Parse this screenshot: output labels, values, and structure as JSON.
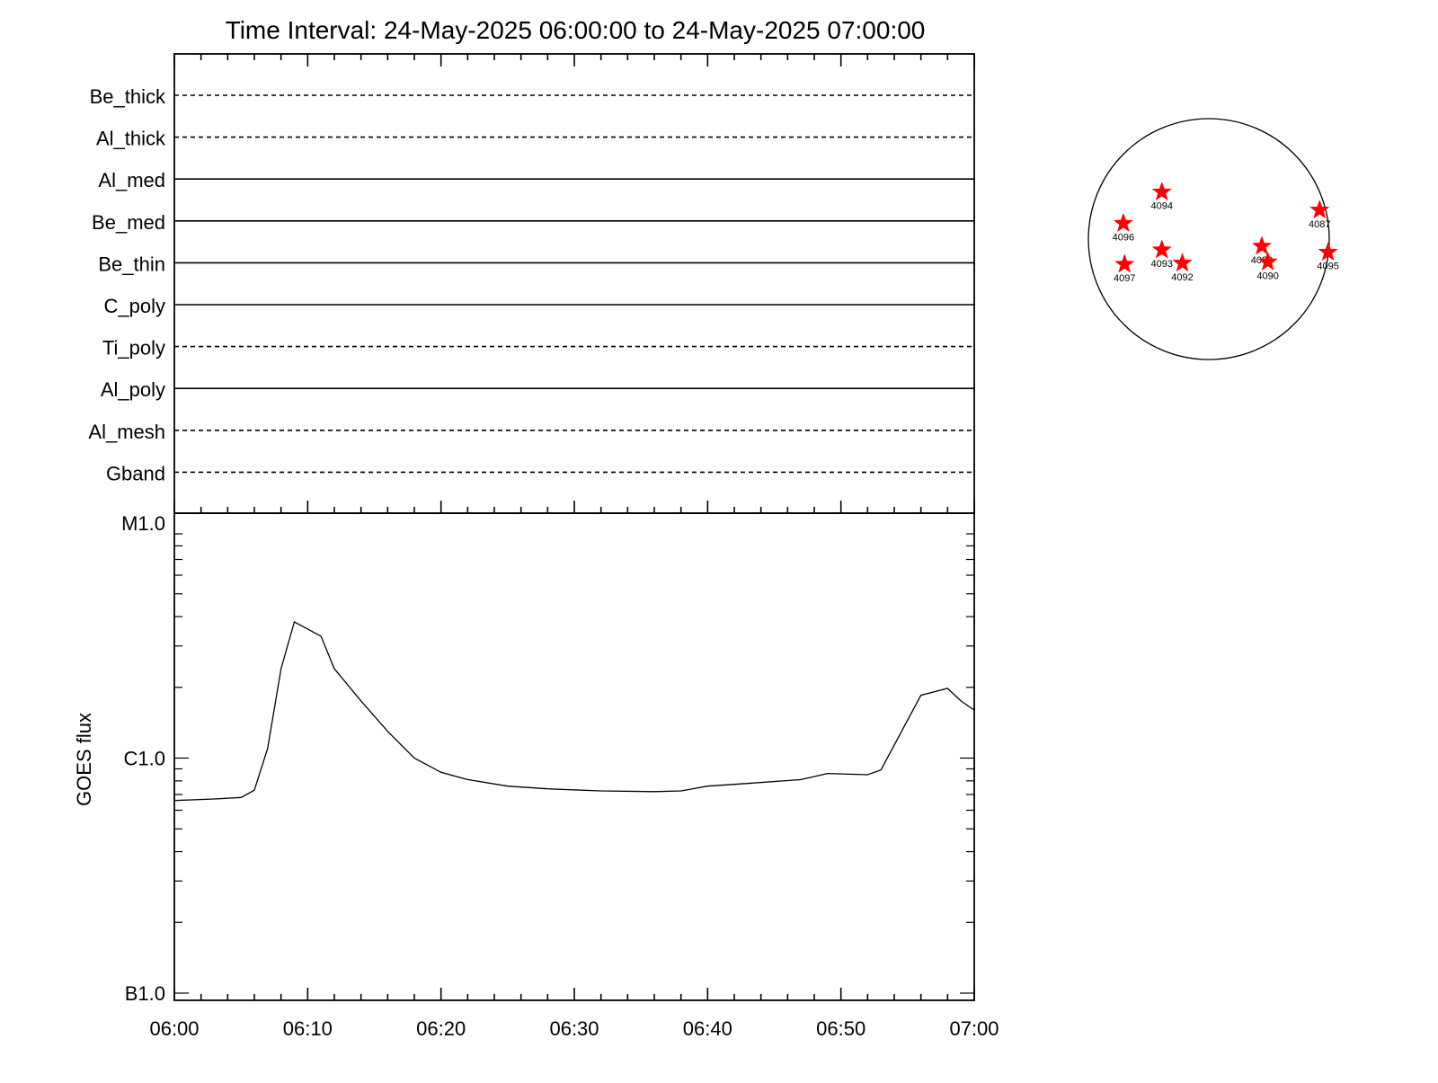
{
  "title": "Time Interval: 24-May-2025 06:00:00 to 24-May-2025 07:00:00",
  "chart_data": [
    {
      "type": "line",
      "panel": "filter-timeline",
      "filters": [
        {
          "name": "Be_thick",
          "style": "dashed"
        },
        {
          "name": "Al_thick",
          "style": "dashed"
        },
        {
          "name": "Al_med",
          "style": "solid"
        },
        {
          "name": "Be_med",
          "style": "solid"
        },
        {
          "name": "Be_thin",
          "style": "solid"
        },
        {
          "name": "C_poly",
          "style": "solid"
        },
        {
          "name": "Ti_poly",
          "style": "dashed"
        },
        {
          "name": "Al_poly",
          "style": "solid"
        },
        {
          "name": "Al_mesh",
          "style": "dashed"
        },
        {
          "name": "Gband",
          "style": "dashed"
        }
      ]
    },
    {
      "type": "line",
      "panel": "goes-flux",
      "ylabel": "GOES flux",
      "yscale": "log",
      "ylim": [
        1e-07,
        1e-05
      ],
      "yticks": [
        {
          "value": 1e-07,
          "label": "B1.0"
        },
        {
          "value": 1e-06,
          "label": "C1.0"
        },
        {
          "value": 1e-05,
          "label": "M1.0"
        }
      ],
      "xlim": [
        "06:00",
        "07:00"
      ],
      "xticks": [
        "06:00",
        "06:10",
        "06:20",
        "06:30",
        "06:40",
        "06:50",
        "07:00"
      ],
      "series": [
        {
          "x": [
            "06:00",
            "06:03",
            "06:05",
            "06:06",
            "06:07",
            "06:08",
            "06:09",
            "06:11",
            "06:12",
            "06:14",
            "06:16",
            "06:18",
            "06:20",
            "06:22",
            "06:25",
            "06:28",
            "06:32",
            "06:36",
            "06:38",
            "06:40",
            "06:43",
            "06:47",
            "06:49",
            "06:52",
            "06:53",
            "06:55",
            "06:56",
            "06:58",
            "06:59",
            "07:00"
          ],
          "y": [
            6.6e-07,
            6.7e-07,
            6.8e-07,
            7.3e-07,
            1.1e-06,
            2.4e-06,
            3.8e-06,
            3.3e-06,
            2.4e-06,
            1.75e-06,
            1.3e-06,
            1e-06,
            8.7e-07,
            8.1e-07,
            7.6e-07,
            7.4e-07,
            7.25e-07,
            7.2e-07,
            7.25e-07,
            7.6e-07,
            7.8e-07,
            8.1e-07,
            8.6e-07,
            8.5e-07,
            8.9e-07,
            1.45e-06,
            1.85e-06,
            1.98e-06,
            1.75e-06,
            1.6e-06
          ]
        }
      ]
    },
    {
      "type": "scatter",
      "panel": "solar-disk",
      "points": [
        {
          "label": "4094",
          "x": -0.39,
          "y": 0.39
        },
        {
          "label": "4087",
          "x": 0.92,
          "y": 0.24
        },
        {
          "label": "4096",
          "x": -0.71,
          "y": 0.13
        },
        {
          "label": "4093",
          "x": -0.39,
          "y": -0.09
        },
        {
          "label": "4097",
          "x": -0.7,
          "y": -0.21
        },
        {
          "label": "4092",
          "x": -0.22,
          "y": -0.2
        },
        {
          "label": "4098",
          "x": 0.44,
          "y": -0.06
        },
        {
          "label": "4090",
          "x": 0.49,
          "y": -0.19
        },
        {
          "label": "4095",
          "x": 0.99,
          "y": -0.11
        }
      ],
      "marker_color": "#ff0000"
    }
  ]
}
